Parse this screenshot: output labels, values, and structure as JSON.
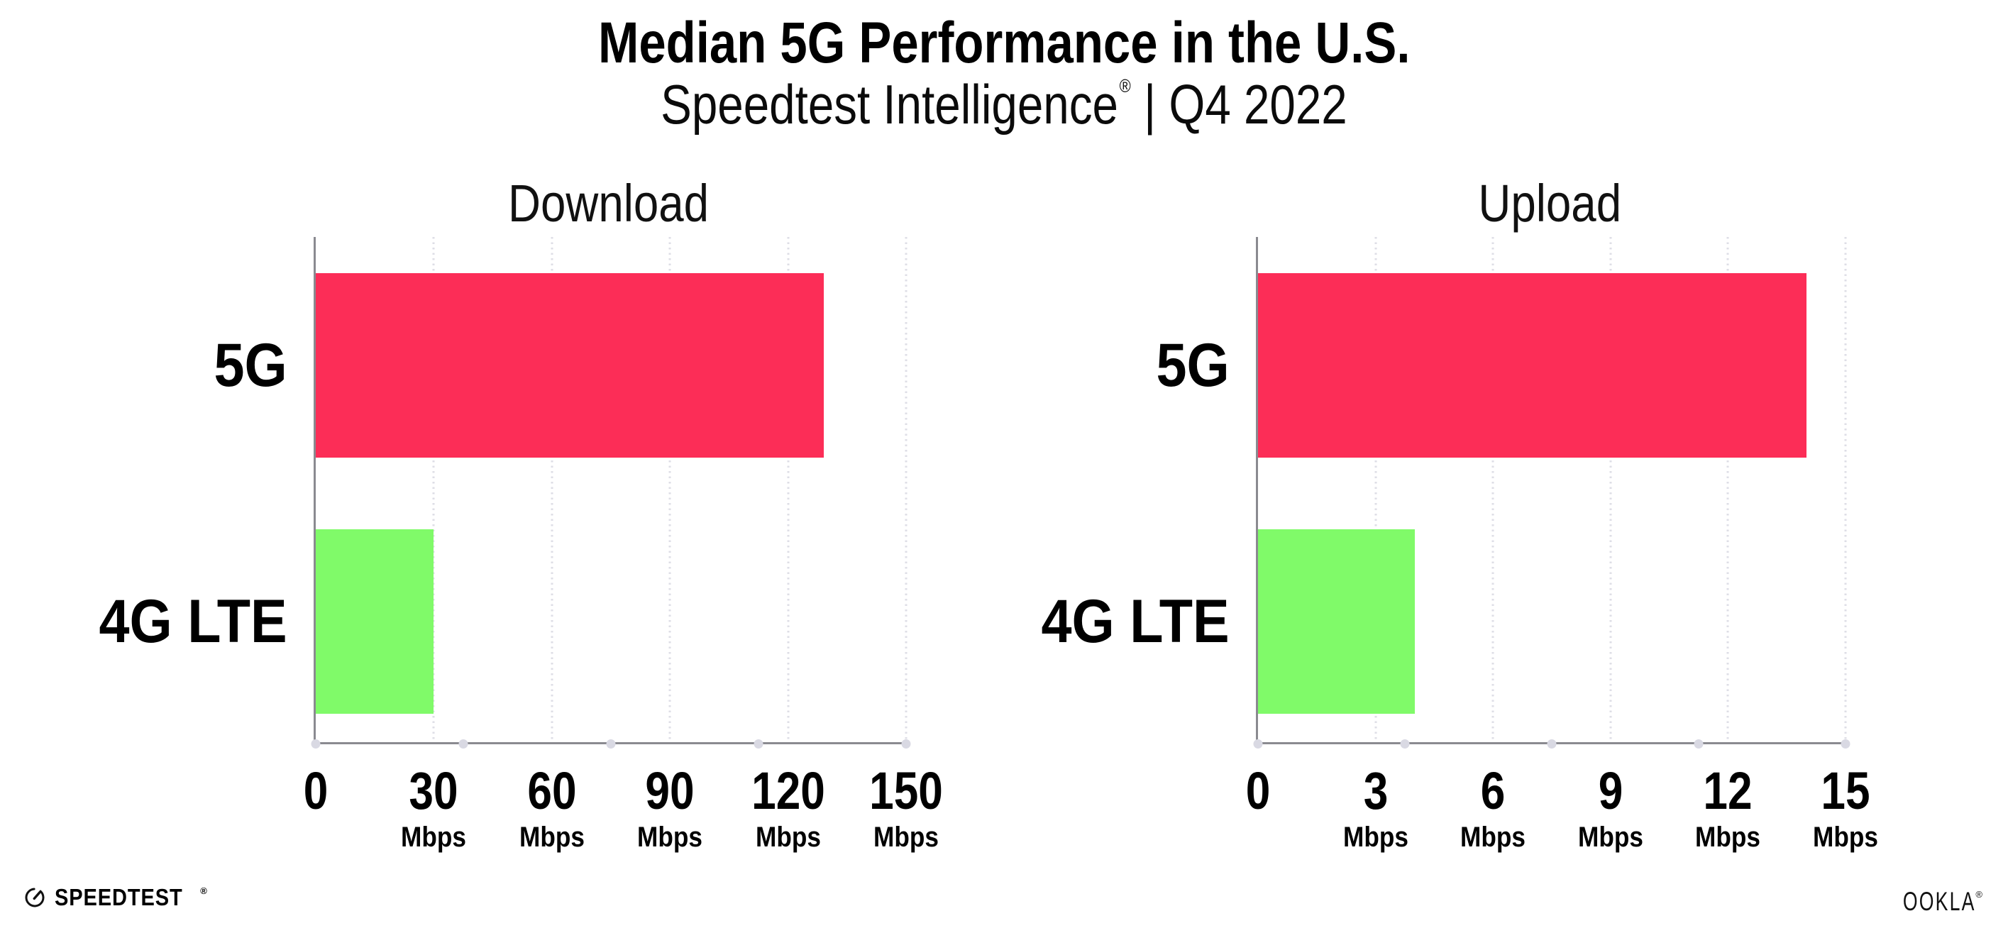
{
  "header": {
    "title": "Median 5G Performance in the U.S.",
    "subtitle_brand": "Speedtest Intelligence",
    "subtitle_reg": "®",
    "subtitle_rest": "| Q4 2022"
  },
  "footer": {
    "speedtest_label": "SPEEDTEST",
    "speedtest_mark": "®",
    "speedtest_icon": "gauge-icon",
    "ookla_label": "OOKLA",
    "ookla_mark": "®"
  },
  "colors": {
    "bar_5g": "#FC2D57",
    "bar_4g": "#80FA69",
    "axis_line": "#8A8A90",
    "grid_dot": "#DEDEE6",
    "axis_tick_dot": "#D9D9E3",
    "text": "#000000",
    "background": "#FFFFFF"
  },
  "chart_data": [
    {
      "type": "bar",
      "orientation": "horizontal",
      "title": "Download",
      "categories": [
        "5G",
        "4G LTE"
      ],
      "values": [
        129,
        30
      ],
      "unit": "Mbps",
      "xlim": [
        0,
        150
      ],
      "xticks": [
        0,
        30,
        60,
        90,
        120,
        150
      ],
      "bar_colors": [
        "#FC2D57",
        "#80FA69"
      ],
      "grid": "dotted-vertical",
      "legend": "none"
    },
    {
      "type": "bar",
      "orientation": "horizontal",
      "title": "Upload",
      "categories": [
        "5G",
        "4G LTE"
      ],
      "values": [
        14,
        4
      ],
      "unit": "Mbps",
      "xlim": [
        0,
        15
      ],
      "xticks": [
        0,
        3,
        6,
        9,
        12,
        15
      ],
      "bar_colors": [
        "#FC2D57",
        "#80FA69"
      ],
      "grid": "dotted-vertical",
      "legend": "none"
    }
  ]
}
